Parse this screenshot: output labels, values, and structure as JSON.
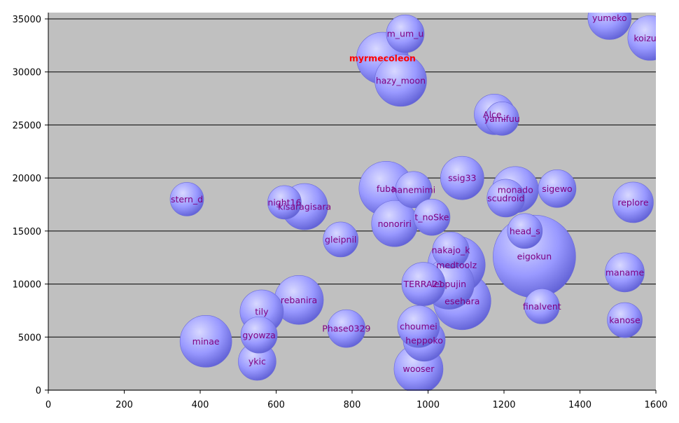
{
  "chart_data": {
    "type": "bubble",
    "xlim": [
      0,
      1600
    ],
    "ylim": [
      0,
      35000
    ],
    "x_ticks": [
      "0",
      "200",
      "400",
      "600",
      "800",
      "1000",
      "1200",
      "1400",
      "1600"
    ],
    "y_ticks": [
      "0",
      "5000",
      "10000",
      "15000",
      "20000",
      "25000",
      "30000",
      "35000"
    ],
    "grid": "horizontal",
    "plot_background": "#c0c0c0",
    "bubble_color": "#9999ff",
    "label_color": "#800080",
    "highlight_color": "#ff0000",
    "bubbles": [
      {
        "label": "eigokun",
        "x": 1280,
        "y": 12600,
        "r": 59,
        "highlight": false
      },
      {
        "label": "esehara",
        "x": 1090,
        "y": 8400,
        "r": 41,
        "highlight": false
      },
      {
        "label": "medtoolz",
        "x": 1075,
        "y": 11800,
        "r": 41,
        "highlight": false
      },
      {
        "label": "myrmecoleon",
        "x": 880,
        "y": 31300,
        "r": 37,
        "highlight": true
      },
      {
        "label": "fuba",
        "x": 890,
        "y": 19000,
        "r": 39,
        "highlight": false
      },
      {
        "label": "minae",
        "x": 415,
        "y": 4600,
        "r": 37,
        "highlight": false
      },
      {
        "label": "hazy_moon",
        "x": 928,
        "y": 29200,
        "r": 37,
        "highlight": false
      },
      {
        "label": "leopujin",
        "x": 1055,
        "y": 10000,
        "r": 36,
        "highlight": false
      },
      {
        "label": "rebanira",
        "x": 660,
        "y": 8500,
        "r": 35,
        "highlight": false
      },
      {
        "label": "monado",
        "x": 1230,
        "y": 18900,
        "r": 33,
        "highlight": false
      },
      {
        "label": "kisaragisara",
        "x": 675,
        "y": 17300,
        "r": 33,
        "highlight": false
      },
      {
        "label": "nonoriri",
        "x": 912,
        "y": 15700,
        "r": 33,
        "highlight": false
      },
      {
        "label": "wooser",
        "x": 975,
        "y": 2000,
        "r": 35,
        "highlight": false
      },
      {
        "label": "koizuka",
        "x": 1585,
        "y": 33200,
        "r": 32,
        "highlight": false
      },
      {
        "label": "yumeko",
        "x": 1478,
        "y": 35100,
        "r": 31,
        "highlight": false
      },
      {
        "label": "TERRA21",
        "x": 988,
        "y": 10000,
        "r": 31,
        "highlight": false
      },
      {
        "label": "heppoko",
        "x": 990,
        "y": 4700,
        "r": 30,
        "highlight": false
      },
      {
        "label": "choumei",
        "x": 975,
        "y": 6000,
        "r": 30,
        "highlight": false
      },
      {
        "label": "ssig33",
        "x": 1090,
        "y": 20000,
        "r": 31,
        "highlight": false
      },
      {
        "label": "Alce_",
        "x": 1175,
        "y": 26000,
        "r": 29,
        "highlight": false
      },
      {
        "label": "tily",
        "x": 562,
        "y": 7400,
        "r": 31,
        "highlight": false
      },
      {
        "label": "replore",
        "x": 1540,
        "y": 17700,
        "r": 29,
        "highlight": false
      },
      {
        "label": "maname",
        "x": 1518,
        "y": 11100,
        "r": 28,
        "highlight": false
      },
      {
        "label": "hanemimi",
        "x": 962,
        "y": 18900,
        "r": 26,
        "highlight": false
      },
      {
        "label": "sigewo",
        "x": 1340,
        "y": 19000,
        "r": 27,
        "highlight": false
      },
      {
        "label": "nakajo_k",
        "x": 1060,
        "y": 13200,
        "r": 26,
        "highlight": false
      },
      {
        "label": "t_noSke",
        "x": 1010,
        "y": 16300,
        "r": 26,
        "highlight": false
      },
      {
        "label": "scudroid",
        "x": 1205,
        "y": 18100,
        "r": 27,
        "highlight": false
      },
      {
        "label": "m_um_u",
        "x": 940,
        "y": 33600,
        "r": 27,
        "highlight": false
      },
      {
        "label": "Phase0329",
        "x": 785,
        "y": 5800,
        "r": 27,
        "highlight": false
      },
      {
        "label": "gyowza",
        "x": 555,
        "y": 5200,
        "r": 26,
        "highlight": false
      },
      {
        "label": "ykic",
        "x": 550,
        "y": 2700,
        "r": 27,
        "highlight": false
      },
      {
        "label": "gleipnil",
        "x": 770,
        "y": 14200,
        "r": 25,
        "highlight": false
      },
      {
        "label": "finalvent",
        "x": 1300,
        "y": 7900,
        "r": 25,
        "highlight": false
      },
      {
        "label": "night16",
        "x": 622,
        "y": 17700,
        "r": 24,
        "highlight": false
      },
      {
        "label": "kanose",
        "x": 1518,
        "y": 6600,
        "r": 25,
        "highlight": false
      },
      {
        "label": "yamifuu",
        "x": 1195,
        "y": 25600,
        "r": 24,
        "highlight": false
      },
      {
        "label": "head_s",
        "x": 1255,
        "y": 15000,
        "r": 25,
        "highlight": false
      },
      {
        "label": "stern_d",
        "x": 365,
        "y": 18000,
        "r": 24,
        "highlight": false
      }
    ]
  }
}
